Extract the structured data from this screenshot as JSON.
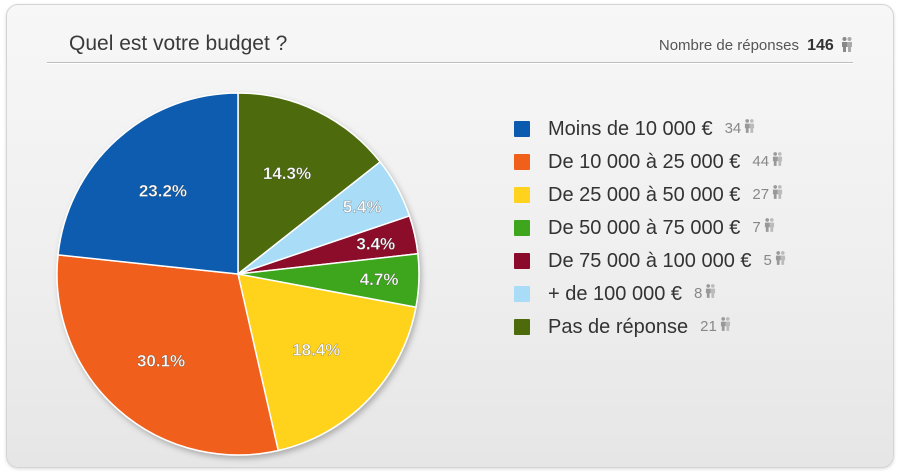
{
  "header": {
    "title": "Quel est votre budget ?",
    "responses_label": "Nombre de réponses",
    "responses_total": "146",
    "person_icon": "person-icon"
  },
  "colors": {
    "blue": "#0a5bb0",
    "orange": "#f0601a",
    "yellow": "#ffd21e",
    "green": "#3da61c",
    "maroon": "#8b0a2c",
    "lightblue": "#a8dcf7",
    "olive": "#4e6b0c"
  },
  "chart_data": {
    "type": "pie",
    "title": "Quel est votre budget ?",
    "total_responses": 146,
    "slices": [
      {
        "label": "Moins de 10 000 €",
        "count": 34,
        "percent": 23.2,
        "percent_label": "23.2%",
        "color": "#0a5bb0"
      },
      {
        "label": "De 10 000 à 25 000 €",
        "count": 44,
        "percent": 30.1,
        "percent_label": "30.1%",
        "color": "#f0601a"
      },
      {
        "label": "De 25 000 à 50 000 €",
        "count": 27,
        "percent": 18.4,
        "percent_label": "18.4%",
        "color": "#ffd21e"
      },
      {
        "label": "De 50 000 à 75 000 €",
        "count": 7,
        "percent": 4.7,
        "percent_label": "4.7%",
        "color": "#3da61c"
      },
      {
        "label": "De 75 000 à 100 000 €",
        "count": 5,
        "percent": 3.4,
        "percent_label": "3.4%",
        "color": "#8b0a2c"
      },
      {
        "label": "+ de 100 000 €",
        "count": 8,
        "percent": 5.4,
        "percent_label": "5.4%",
        "color": "#a8dcf7"
      },
      {
        "label": "Pas de réponse",
        "count": 21,
        "percent": 14.3,
        "percent_label": "14.3%",
        "color": "#4e6b0c"
      }
    ]
  },
  "legend": {
    "items": [
      {
        "label": "Moins de 10 000 €",
        "count": "34",
        "color": "#0a5bb0"
      },
      {
        "label": "De 10 000 à 25 000 €",
        "count": "44",
        "color": "#f0601a"
      },
      {
        "label": "De 25 000 à 50 000 €",
        "count": "27",
        "color": "#ffd21e"
      },
      {
        "label": "De 50 000 à 75 000 €",
        "count": "7",
        "color": "#3da61c"
      },
      {
        "label": "De 75 000 à 100 000 €",
        "count": "5",
        "color": "#8b0a2c"
      },
      {
        "label": "+ de 100 000 €",
        "count": "8",
        "color": "#a8dcf7"
      },
      {
        "label": "Pas de réponse",
        "count": "21",
        "color": "#4e6b0c"
      }
    ]
  }
}
